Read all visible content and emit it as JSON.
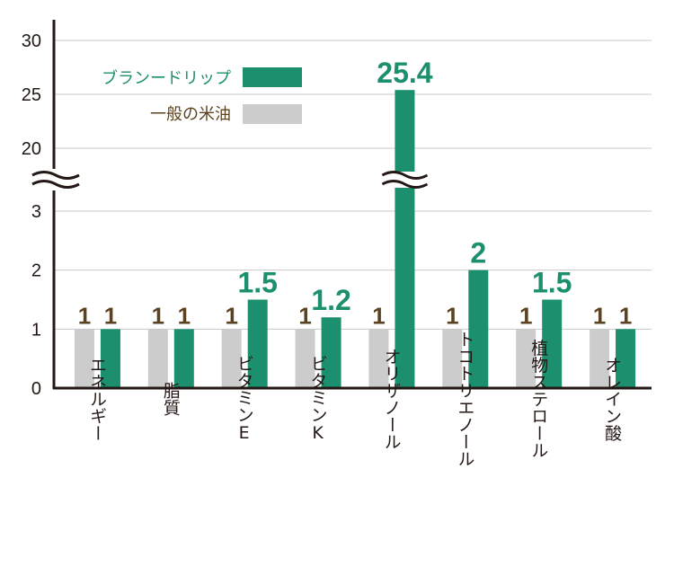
{
  "chart_data": {
    "type": "bar",
    "categories": [
      "エネルギー",
      "脂質",
      "ビタミンE",
      "ビタミンK",
      "オリザノール",
      "トコトリエノール",
      "植物ステロール",
      "オレイン酸"
    ],
    "series": [
      {
        "name": "一般の米油",
        "values": [
          1,
          1,
          1,
          1,
          1,
          1,
          1,
          1
        ],
        "color": "#cccccc",
        "labels": [
          "1",
          "1",
          "1",
          "1",
          "1",
          "1",
          "1",
          "1"
        ],
        "label_color": "#5b4220"
      },
      {
        "name": "ブランードリップ",
        "values": [
          1,
          1,
          1.5,
          1.2,
          25.4,
          2,
          1.5,
          1
        ],
        "color": "#1b8f6e",
        "labels": [
          "1",
          "1",
          "1.5",
          "1.2",
          "25.4",
          "2",
          "1.5",
          "1"
        ],
        "label_color": "#1b8f6e"
      }
    ],
    "y_ticks_lower": [
      "0",
      "1",
      "2",
      "3"
    ],
    "y_ticks_upper": [
      "20",
      "25",
      "30"
    ],
    "axis_break": true,
    "ylim_lower": [
      0,
      3
    ],
    "ylim_upper": [
      20,
      30
    ],
    "grid": true,
    "legend_position": "top-left",
    "title": "",
    "xlabel": "",
    "ylabel": ""
  },
  "colors": {
    "brand": "#1b8f6e",
    "general": "#cccccc",
    "legend_brand_text": "#1b8f6e",
    "legend_general_text": "#5b4220",
    "axis": "#231815",
    "grid": "#c8c8c8"
  }
}
